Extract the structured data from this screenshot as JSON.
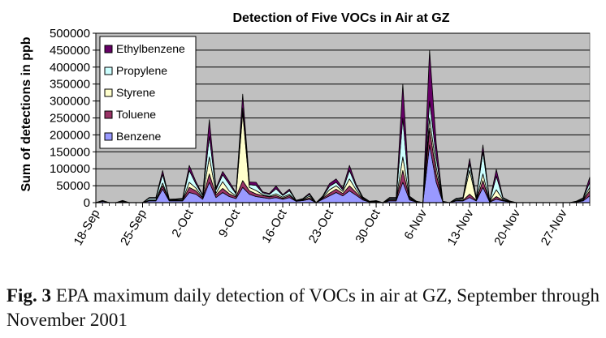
{
  "chart_data": {
    "type": "area",
    "stacked": true,
    "title": "Detection of Five VOCs in Air at GZ",
    "ylabel": "Sum of detections in ppb",
    "xlabel": "",
    "ylim": [
      0,
      500000
    ],
    "yticks": [
      0,
      50000,
      100000,
      150000,
      200000,
      250000,
      300000,
      350000,
      400000,
      450000,
      500000
    ],
    "ytick_labels": [
      "0",
      "50000",
      "100000",
      "150000",
      "200000",
      "250000",
      "300000",
      "350000",
      "400000",
      "450000",
      "500000"
    ],
    "x_range": [
      "2001-09-18",
      "2001-12-01"
    ],
    "xtick_dates": [
      "2001-09-18",
      "2001-09-25",
      "2001-10-02",
      "2001-10-09",
      "2001-10-16",
      "2001-10-23",
      "2001-10-30",
      "2001-11-06",
      "2001-11-13",
      "2001-11-20",
      "2001-11-27"
    ],
    "xtick_labels": [
      "18-Sep",
      "25-Sep",
      "2-Oct",
      "9-Oct",
      "16-Oct",
      "23-Oct",
      "30-Oct",
      "6-Nov",
      "13-Nov",
      "20-Nov",
      "27-Nov"
    ],
    "grid": "horizontal",
    "plot_background": "#c0c0c0",
    "legend_position": "top-left",
    "legend_order": [
      "Ethylbenzene",
      "Propylene",
      "Styrene",
      "Toluene",
      "Benzene"
    ],
    "x": [
      "2001-09-18",
      "2001-09-19",
      "2001-09-20",
      "2001-09-21",
      "2001-09-22",
      "2001-09-23",
      "2001-09-24",
      "2001-09-25",
      "2001-09-26",
      "2001-09-27",
      "2001-09-28",
      "2001-09-29",
      "2001-09-30",
      "2001-10-01",
      "2001-10-02",
      "2001-10-03",
      "2001-10-04",
      "2001-10-05",
      "2001-10-06",
      "2001-10-07",
      "2001-10-08",
      "2001-10-09",
      "2001-10-10",
      "2001-10-11",
      "2001-10-12",
      "2001-10-13",
      "2001-10-14",
      "2001-10-15",
      "2001-10-16",
      "2001-10-17",
      "2001-10-18",
      "2001-10-19",
      "2001-10-20",
      "2001-10-21",
      "2001-10-22",
      "2001-10-23",
      "2001-10-24",
      "2001-10-25",
      "2001-10-26",
      "2001-10-27",
      "2001-10-28",
      "2001-10-29",
      "2001-10-30",
      "2001-10-31",
      "2001-11-01",
      "2001-11-02",
      "2001-11-03",
      "2001-11-04",
      "2001-11-05",
      "2001-11-06",
      "2001-11-07",
      "2001-11-08",
      "2001-11-09",
      "2001-11-10",
      "2001-11-11",
      "2001-11-12",
      "2001-11-13",
      "2001-11-14",
      "2001-11-15",
      "2001-11-16",
      "2001-11-17",
      "2001-11-18",
      "2001-11-19",
      "2001-11-20",
      "2001-11-21",
      "2001-11-22",
      "2001-11-23",
      "2001-11-24",
      "2001-11-25",
      "2001-11-26",
      "2001-11-27",
      "2001-11-28",
      "2001-11-29",
      "2001-11-30",
      "2001-12-01"
    ],
    "series": [
      {
        "name": "Benzene",
        "color": "#9999ff",
        "values": [
          0,
          4000,
          0,
          0,
          3000,
          0,
          0,
          0,
          5000,
          5000,
          40000,
          5000,
          5000,
          5000,
          30000,
          25000,
          10000,
          60000,
          15000,
          30000,
          18000,
          12000,
          45000,
          25000,
          18000,
          15000,
          12000,
          15000,
          10000,
          15000,
          4000,
          6000,
          10000,
          0,
          10000,
          20000,
          30000,
          20000,
          35000,
          22000,
          8000,
          2000,
          2000,
          0,
          5000,
          5000,
          60000,
          8000,
          2000,
          0,
          170000,
          60000,
          2000,
          0,
          5000,
          5000,
          15000,
          5000,
          45000,
          2000,
          10000,
          5000,
          2000,
          0,
          0,
          0,
          0,
          0,
          0,
          0,
          0,
          0,
          2000,
          5000,
          20000
        ]
      },
      {
        "name": "Toluene",
        "color": "#993366",
        "values": [
          0,
          1000,
          0,
          0,
          1000,
          0,
          0,
          0,
          2000,
          2000,
          10000,
          2000,
          2000,
          2000,
          15000,
          10000,
          4000,
          25000,
          8000,
          12000,
          8000,
          5000,
          20000,
          10000,
          8000,
          6000,
          5000,
          6000,
          3000,
          6000,
          1000,
          2000,
          4000,
          0,
          3000,
          8000,
          10000,
          7000,
          15000,
          8000,
          3000,
          500,
          1000,
          0,
          3000,
          3000,
          35000,
          3000,
          1000,
          0,
          50000,
          25000,
          500,
          0,
          1000,
          2000,
          10000,
          2000,
          20000,
          1000,
          8000,
          2000,
          1000,
          0,
          0,
          0,
          0,
          0,
          0,
          0,
          0,
          0,
          500,
          2000,
          15000
        ]
      },
      {
        "name": "Styrene",
        "color": "#ffffcc",
        "values": [
          0,
          500,
          0,
          0,
          500,
          0,
          0,
          0,
          1000,
          1000,
          8000,
          1000,
          1000,
          1000,
          15000,
          8000,
          2000,
          50000,
          5000,
          20000,
          8000,
          3000,
          200000,
          10000,
          10000,
          3000,
          2000,
          5000,
          3000,
          4000,
          500,
          1000,
          5000,
          0,
          2000,
          10000,
          10000,
          6000,
          20000,
          8000,
          2000,
          500,
          500,
          0,
          2000,
          2000,
          40000,
          2000,
          500,
          0,
          30000,
          20000,
          500,
          0,
          2000,
          3000,
          70000,
          3000,
          20000,
          500,
          20000,
          2000,
          500,
          0,
          0,
          0,
          0,
          0,
          0,
          0,
          0,
          0,
          500,
          2000,
          10000
        ]
      },
      {
        "name": "Propylene",
        "color": "#ccffff",
        "values": [
          0,
          500,
          0,
          0,
          1000,
          0,
          0,
          0,
          5000,
          5000,
          25000,
          1000,
          2000,
          3000,
          35000,
          12000,
          5000,
          60000,
          10000,
          20000,
          20000,
          6000,
          15000,
          8000,
          15000,
          5000,
          5000,
          15000,
          5000,
          10000,
          1000,
          2000,
          5000,
          0,
          3000,
          10000,
          10000,
          5000,
          25000,
          10000,
          2000,
          500,
          2000,
          0,
          3000,
          3000,
          115000,
          3000,
          500,
          0,
          50000,
          30000,
          500,
          0,
          3000,
          3000,
          20000,
          3000,
          65000,
          1000,
          40000,
          4000,
          1000,
          0,
          0,
          0,
          0,
          0,
          0,
          0,
          0,
          0,
          1000,
          3000,
          15000
        ]
      },
      {
        "name": "Ethylbenzene",
        "color": "#660066",
        "values": [
          0,
          500,
          0,
          0,
          1000,
          0,
          0,
          0,
          2000,
          2000,
          12000,
          1000,
          1000,
          2000,
          15000,
          7000,
          2000,
          50000,
          5000,
          10000,
          8000,
          3000,
          40000,
          8000,
          9000,
          3000,
          3000,
          8000,
          3000,
          5000,
          500,
          1000,
          4000,
          0,
          2000,
          8000,
          10000,
          5000,
          15000,
          6000,
          2000,
          500,
          500,
          0,
          2000,
          2000,
          100000,
          3000,
          500,
          0,
          150000,
          40000,
          500,
          0,
          2000,
          2000,
          15000,
          2000,
          20000,
          500,
          20000,
          2000,
          500,
          0,
          0,
          0,
          0,
          0,
          0,
          0,
          0,
          0,
          500,
          2000,
          15000
        ]
      }
    ]
  },
  "caption": {
    "label": "Fig. 3",
    "text": " EPA maximum daily detection of VOCs in air at GZ, September through November 2001"
  }
}
